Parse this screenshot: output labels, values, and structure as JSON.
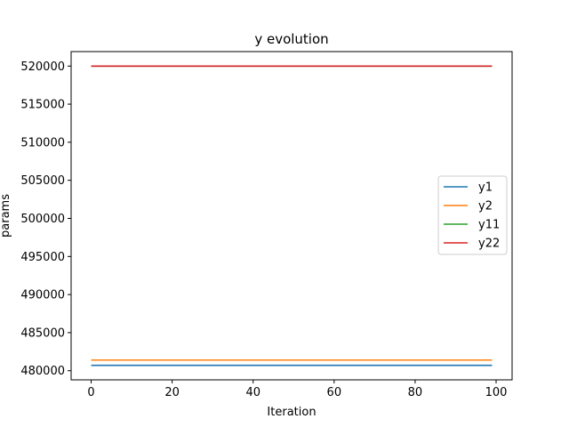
{
  "chart_data": {
    "type": "line",
    "title": "y evolution",
    "xlabel": "Iteration",
    "ylabel": "params",
    "xlim": [
      -4.95,
      103.95
    ],
    "ylim": [
      478800,
      521900
    ],
    "xticks": [
      0,
      20,
      40,
      60,
      80,
      100
    ],
    "xtick_labels": [
      "0",
      "20",
      "40",
      "60",
      "80",
      "100"
    ],
    "yticks": [
      480000,
      485000,
      490000,
      495000,
      500000,
      505000,
      510000,
      515000,
      520000
    ],
    "ytick_labels": [
      "480000",
      "485000",
      "490000",
      "495000",
      "500000",
      "505000",
      "510000",
      "515000",
      "520000"
    ],
    "x": [
      0,
      99
    ],
    "series": [
      {
        "name": "y1",
        "color": "#1f77b4",
        "values": [
          480700,
          480700
        ]
      },
      {
        "name": "y2",
        "color": "#ff7f0e",
        "values": [
          481400,
          481400
        ]
      },
      {
        "name": "y11",
        "color": "#2ca02c",
        "values": [
          520000,
          520000
        ]
      },
      {
        "name": "y22",
        "color": "#d62728",
        "values": [
          520000,
          520000
        ]
      }
    ],
    "legend_position": "center-right",
    "grid": false
  }
}
